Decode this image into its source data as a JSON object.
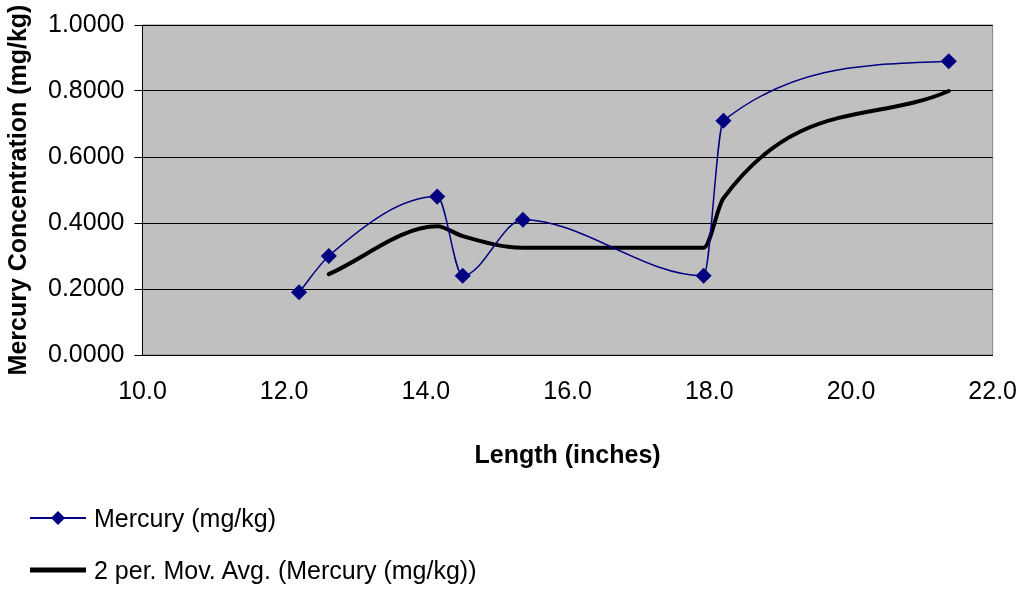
{
  "chart_data": {
    "type": "line",
    "xlabel": "Length (inches)",
    "ylabel": "Mercury Concentration (mg/kg)",
    "xlim": [
      10,
      22
    ],
    "xticks": [
      {
        "value": 10,
        "label": "10.0"
      },
      {
        "value": 12,
        "label": "12.0"
      },
      {
        "value": 14,
        "label": "14.0"
      },
      {
        "value": 16,
        "label": "16.0"
      },
      {
        "value": 18,
        "label": "18.0"
      },
      {
        "value": 20,
        "label": "20.0"
      },
      {
        "value": 22,
        "label": "22.0"
      }
    ],
    "ylim": [
      0,
      1
    ],
    "yticks": [
      {
        "value": 0,
        "label": "0.0000"
      },
      {
        "value": 0.2,
        "label": "0.2000"
      },
      {
        "value": 0.4,
        "label": "0.4000"
      },
      {
        "value": 0.6,
        "label": "0.6000"
      },
      {
        "value": 0.8,
        "label": "0.8000"
      },
      {
        "value": 1,
        "label": "1.0000"
      }
    ],
    "grid": "y",
    "legend": "bottom left",
    "series": [
      {
        "name": "Mercury (mg/kg)",
        "color": "#000080",
        "marker": "diamond",
        "line_style": "solid",
        "x": [
          12.21,
          12.63,
          14.16,
          14.52,
          15.37,
          17.92,
          18.2,
          21.38
        ],
        "values": [
          0.19,
          0.3,
          0.48,
          0.24,
          0.41,
          0.24,
          0.71,
          0.89
        ]
      },
      {
        "name": "2 per. Mov. Avg. (Mercury (mg/kg))",
        "color": "#000000",
        "marker": "none",
        "line_style": "solid",
        "x": [
          12.63,
          14.16,
          14.52,
          15.37,
          17.92,
          18.2,
          21.38
        ],
        "values": [
          0.245,
          0.39,
          0.36,
          0.325,
          0.325,
          0.475,
          0.8
        ]
      }
    ]
  }
}
